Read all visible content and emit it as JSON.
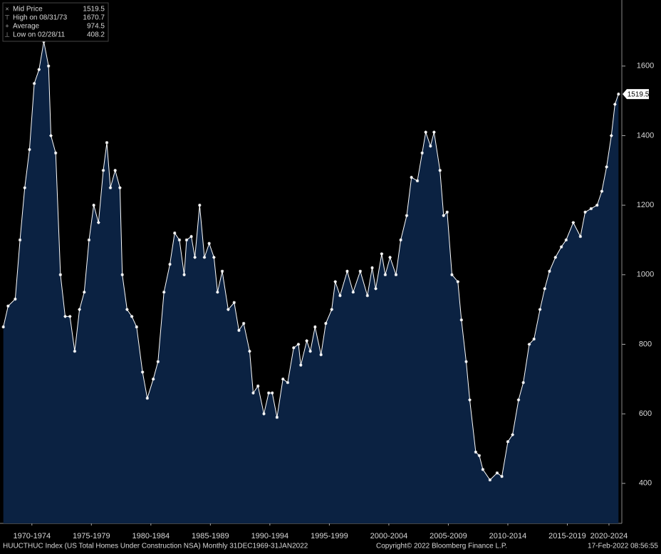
{
  "chart_data": {
    "type": "area",
    "line_color": "#ffffff",
    "fill_color": "#0b2242",
    "legend": [
      {
        "name": "Mid Price",
        "value": 1519.5
      },
      {
        "name": "High on 08/31/73",
        "value": 1670.7
      },
      {
        "name": "Average",
        "value": 974.5
      },
      {
        "name": "Low on 02/28/11",
        "value": 408.2
      }
    ],
    "last_price": 1519.5,
    "footer_left": "HUUCTHUC Index (US Total Homes Under Construction NSA)  Monthly 31DEC1969-31JAN2022",
    "footer_center": "Copyright© 2022 Bloomberg Finance L.P.",
    "footer_right": "17-Feb-2022 08:56:55",
    "xlim": [
      1969.82,
      2022.08
    ],
    "ylim": [
      285,
      1790
    ],
    "yticks": [
      400,
      600,
      800,
      1000,
      1200,
      1400,
      1600
    ],
    "xticks": [
      {
        "value": 1972.5,
        "label": "1970-1974"
      },
      {
        "value": 1977.5,
        "label": "1975-1979"
      },
      {
        "value": 1982.5,
        "label": "1980-1984"
      },
      {
        "value": 1987.5,
        "label": "1985-1989"
      },
      {
        "value": 1992.5,
        "label": "1990-1994"
      },
      {
        "value": 1997.5,
        "label": "1995-1999"
      },
      {
        "value": 2002.5,
        "label": "2000-2004"
      },
      {
        "value": 2007.5,
        "label": "2005-2009"
      },
      {
        "value": 2012.5,
        "label": "2010-2014"
      },
      {
        "value": 2017.5,
        "label": "2015-2019"
      },
      {
        "value": 2021,
        "label": "2020-2024"
      }
    ],
    "x": [
      1970.1,
      1970.5,
      1971.1,
      1971.5,
      1971.9,
      1972.3,
      1972.7,
      1973.1,
      1973.5,
      1973.9,
      1974.1,
      1974.5,
      1974.9,
      1975.3,
      1975.7,
      1976.1,
      1976.5,
      1976.9,
      1977.3,
      1977.7,
      1978.1,
      1978.5,
      1978.8,
      1979.1,
      1979.5,
      1979.9,
      1980.1,
      1980.5,
      1980.9,
      1981.3,
      1981.8,
      1982.2,
      1982.7,
      1983.1,
      1983.6,
      1984.1,
      1984.5,
      1984.9,
      1985.3,
      1985.5,
      1985.9,
      1986.2,
      1986.6,
      1987.0,
      1987.4,
      1987.8,
      1988.1,
      1988.5,
      1989.0,
      1989.5,
      1989.9,
      1990.3,
      1990.8,
      1991.1,
      1991.5,
      1992.0,
      1992.4,
      1992.7,
      1993.1,
      1993.6,
      1994.0,
      1994.5,
      1994.9,
      1995.1,
      1995.6,
      1995.9,
      1996.3,
      1996.8,
      1997.2,
      1997.7,
      1998.0,
      1998.4,
      1999.0,
      1999.5,
      2000.1,
      2000.7,
      2001.1,
      2001.4,
      2001.9,
      2002.2,
      2002.6,
      2003.1,
      2003.5,
      2004.0,
      2004.4,
      2004.9,
      2005.3,
      2005.6,
      2006.0,
      2006.3,
      2006.8,
      2007.1,
      2007.4,
      2007.8,
      2008.3,
      2008.6,
      2009.0,
      2009.3,
      2009.8,
      2010.1,
      2010.4,
      2011.0,
      2011.6,
      2012.0,
      2012.5,
      2012.9,
      2013.4,
      2013.8,
      2014.3,
      2014.7,
      2015.2,
      2015.6,
      2016.0,
      2016.5,
      2017.0,
      2017.4,
      2018.0,
      2018.6,
      2019.0,
      2019.5,
      2020.0,
      2020.4,
      2020.8,
      2021.2,
      2021.5,
      2021.8
    ],
    "values": [
      850,
      910,
      930,
      1100,
      1250,
      1360,
      1550,
      1590,
      1670.7,
      1600,
      1400,
      1350,
      1000,
      880,
      880,
      780,
      900,
      950,
      1100,
      1200,
      1150,
      1300,
      1380,
      1250,
      1300,
      1250,
      1000,
      900,
      880,
      850,
      720,
      645,
      700,
      750,
      950,
      1030,
      1120,
      1100,
      1000,
      1100,
      1110,
      1050,
      1200,
      1050,
      1090,
      1050,
      950,
      1010,
      900,
      920,
      840,
      860,
      780,
      660,
      680,
      600,
      660,
      660,
      590,
      700,
      690,
      790,
      800,
      740,
      810,
      780,
      850,
      770,
      860,
      900,
      980,
      940,
      1010,
      950,
      1010,
      940,
      1020,
      960,
      1060,
      1000,
      1050,
      1000,
      1100,
      1170,
      1280,
      1270,
      1350,
      1410,
      1370,
      1410,
      1300,
      1170,
      1180,
      1000,
      980,
      870,
      750,
      640,
      490,
      480,
      440,
      410,
      430,
      420,
      520,
      540,
      640,
      690,
      800,
      815,
      900,
      960,
      1010,
      1050,
      1080,
      1100,
      1150,
      1110,
      1180,
      1190,
      1200,
      1240,
      1310,
      1400,
      1490,
      1519.5
    ]
  }
}
